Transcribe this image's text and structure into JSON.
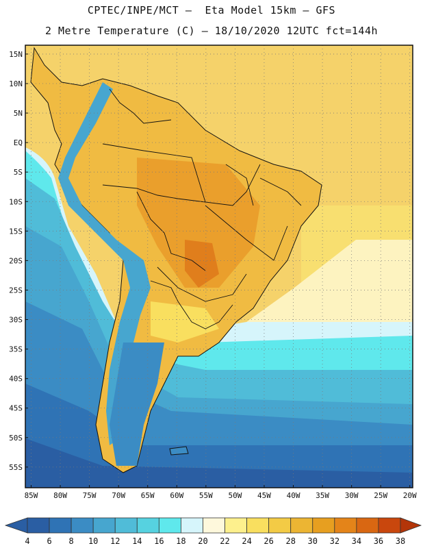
{
  "header": {
    "title_line1": "CPTEC/INPE/MCT –  Eta Model 15km – GFS",
    "title_line2": "2 Metre Temperature (C) – 18/10/2020 12UTC fct=144h"
  },
  "map": {
    "lat_labels": [
      "15N",
      "10N",
      "5N",
      "EQ",
      "5S",
      "10S",
      "15S",
      "20S",
      "25S",
      "30S",
      "35S",
      "40S",
      "45S",
      "50S",
      "55S"
    ],
    "lat_values": [
      15,
      10,
      5,
      0,
      -5,
      -10,
      -15,
      -20,
      -25,
      -30,
      -35,
      -40,
      -45,
      -50,
      -55
    ],
    "lon_labels": [
      "85W",
      "80W",
      "75W",
      "70W",
      "65W",
      "60W",
      "55W",
      "50W",
      "45W",
      "40W",
      "35W",
      "30W",
      "25W",
      "20W"
    ],
    "lon_values": [
      -85,
      -80,
      -75,
      -70,
      -65,
      -60,
      -55,
      -50,
      -45,
      -40,
      -35,
      -30,
      -25,
      -20
    ],
    "lon_range": [
      -86,
      -19.5
    ],
    "lat_range": [
      -58.5,
      16.5
    ],
    "gridlines": "dotted",
    "ocean_color": "#f5d26a"
  },
  "legend": {
    "values": [
      "4",
      "6",
      "8",
      "10",
      "12",
      "14",
      "16",
      "18",
      "20",
      "22",
      "24",
      "26",
      "28",
      "30",
      "32",
      "34",
      "36",
      "38"
    ],
    "colors": [
      "#2a5ea3",
      "#2f73b5",
      "#3b8cc4",
      "#47a6cf",
      "#50bcd8",
      "#56d2e0",
      "#5fe8ec",
      "#d6f5fb",
      "#fef8dc",
      "#fdf08d",
      "#f9df5f",
      "#f3cb45",
      "#ecb533",
      "#e79f20",
      "#e48419",
      "#d96712",
      "#c9470d"
    ],
    "low_color": "#2a5ea3",
    "high_color": "#b33509"
  }
}
